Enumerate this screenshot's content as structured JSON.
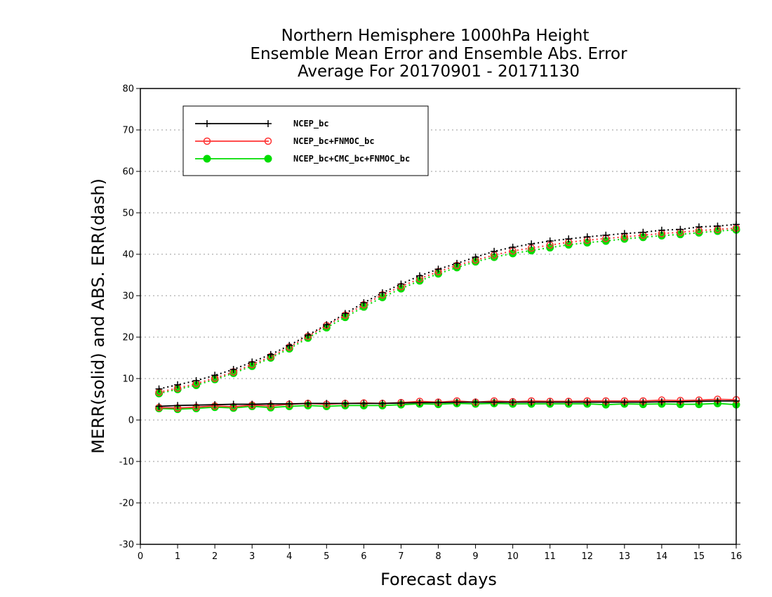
{
  "chart_data": {
    "type": "line",
    "title": [
      "Northern Hemisphere 1000hPa Height",
      "Ensemble Mean Error and Ensemble Abs. Error",
      "Average For 20170901 - 20171130"
    ],
    "xlabel": "Forecast days",
    "ylabel": "MERR(solid) and ABS. ERR(dash)",
    "xlim": [
      0,
      16
    ],
    "ylim": [
      -30,
      80
    ],
    "xticks": [
      0,
      1,
      2,
      3,
      4,
      5,
      6,
      7,
      8,
      9,
      10,
      11,
      12,
      13,
      14,
      15,
      16
    ],
    "yticks": [
      -30,
      -20,
      -10,
      0,
      10,
      20,
      30,
      40,
      50,
      60,
      70,
      80
    ],
    "grid": true,
    "legend_position": "top-left",
    "x": [
      0.5,
      1.0,
      1.5,
      2.0,
      2.5,
      3.0,
      3.5,
      4.0,
      4.5,
      5.0,
      5.5,
      6.0,
      6.5,
      7.0,
      7.5,
      8.0,
      8.5,
      9.0,
      9.5,
      10.0,
      10.5,
      11.0,
      11.5,
      12.0,
      12.5,
      13.0,
      13.5,
      14.0,
      14.5,
      15.0,
      15.5,
      16.0
    ],
    "series": [
      {
        "name": "NCEP_bc",
        "color": "#000000",
        "marker": "plus",
        "merr": [
          3.3,
          3.5,
          3.6,
          3.7,
          3.8,
          3.8,
          3.9,
          3.9,
          4.0,
          4.0,
          4.0,
          4.0,
          4.0,
          4.1,
          4.2,
          4.2,
          4.3,
          4.3,
          4.3,
          4.3,
          4.3,
          4.3,
          4.3,
          4.3,
          4.3,
          4.3,
          4.3,
          4.4,
          4.4,
          4.5,
          4.6,
          4.6
        ],
        "abs_err": [
          7.5,
          8.5,
          9.5,
          10.8,
          12.2,
          14.0,
          15.8,
          18.0,
          20.5,
          23.0,
          25.7,
          28.3,
          30.7,
          32.8,
          34.8,
          36.4,
          37.8,
          39.3,
          40.7,
          41.7,
          42.5,
          43.2,
          43.7,
          44.2,
          44.6,
          45.0,
          45.3,
          45.8,
          46.0,
          46.6,
          46.8,
          47.2
        ]
      },
      {
        "name": "NCEP_bc+FNMOC_bc",
        "color": "#ff3333",
        "marker": "open-circle",
        "merr": [
          3.0,
          2.9,
          3.1,
          3.4,
          3.2,
          3.6,
          3.4,
          3.8,
          4.0,
          3.8,
          4.0,
          4.1,
          4.0,
          4.2,
          4.5,
          4.3,
          4.6,
          4.3,
          4.6,
          4.4,
          4.6,
          4.5,
          4.5,
          4.6,
          4.6,
          4.6,
          4.6,
          4.8,
          4.7,
          4.8,
          5.0,
          4.9
        ],
        "abs_err": [
          6.7,
          7.7,
          8.8,
          10.1,
          11.6,
          13.4,
          15.3,
          17.6,
          20.2,
          22.8,
          25.3,
          27.8,
          30.2,
          32.2,
          34.1,
          35.8,
          37.3,
          38.6,
          39.8,
          40.8,
          41.5,
          42.2,
          42.9,
          43.4,
          43.8,
          44.2,
          44.6,
          45.0,
          45.3,
          45.7,
          46.0,
          46.3
        ]
      },
      {
        "name": "NCEP_bc+CMC_bc+FNMOC_bc",
        "color": "#00dd00",
        "marker": "filled-circle",
        "merr": [
          2.8,
          2.6,
          2.8,
          3.1,
          2.9,
          3.3,
          3.0,
          3.3,
          3.5,
          3.3,
          3.5,
          3.5,
          3.5,
          3.7,
          3.9,
          3.8,
          4.0,
          3.9,
          4.0,
          3.9,
          3.9,
          3.9,
          3.9,
          3.9,
          3.7,
          3.9,
          3.8,
          3.9,
          3.8,
          3.8,
          4.0,
          3.7
        ],
        "abs_err": [
          6.4,
          7.4,
          8.4,
          9.8,
          11.3,
          13.0,
          15.0,
          17.2,
          19.8,
          22.3,
          24.8,
          27.3,
          29.6,
          31.7,
          33.6,
          35.3,
          36.8,
          38.2,
          39.3,
          40.2,
          40.9,
          41.6,
          42.3,
          42.8,
          43.2,
          43.7,
          44.1,
          44.5,
          44.8,
          45.2,
          45.6,
          45.9
        ]
      }
    ]
  }
}
